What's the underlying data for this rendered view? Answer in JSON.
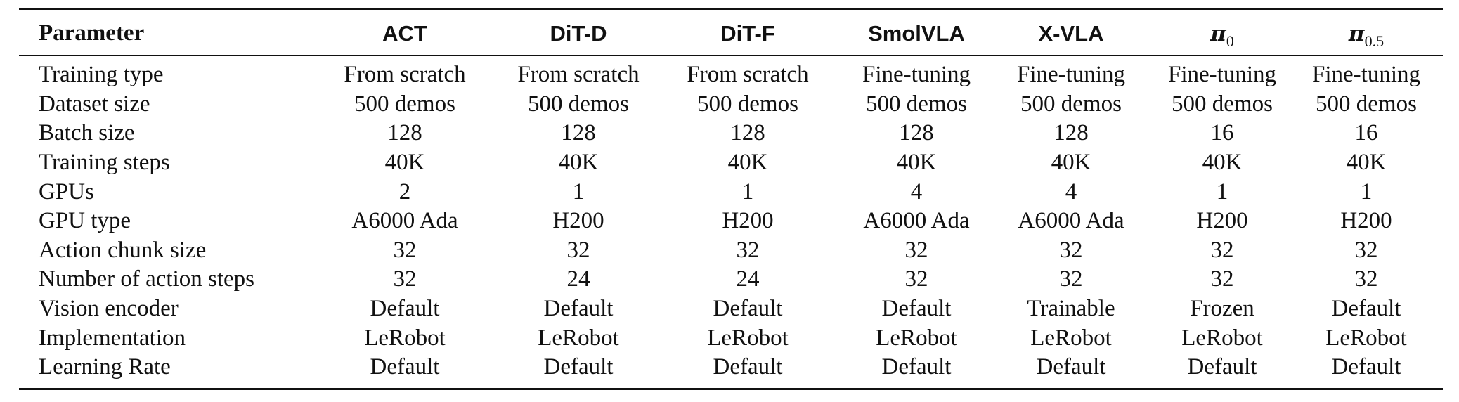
{
  "table": {
    "header": {
      "parameter": "Parameter",
      "models": [
        {
          "name": "ACT"
        },
        {
          "name": "DiT-D"
        },
        {
          "name": "DiT-F"
        },
        {
          "name": "SmolVLA"
        },
        {
          "name": "X-VLA"
        },
        {
          "name": "π",
          "sub": "0"
        },
        {
          "name": "π",
          "sub": "0.5"
        }
      ]
    },
    "rows": [
      {
        "label": "Training type",
        "values": [
          "From scratch",
          "From scratch",
          "From scratch",
          "Fine-tuning",
          "Fine-tuning",
          "Fine-tuning",
          "Fine-tuning"
        ]
      },
      {
        "label": "Dataset size",
        "values": [
          "500 demos",
          "500 demos",
          "500 demos",
          "500 demos",
          "500 demos",
          "500 demos",
          "500 demos"
        ]
      },
      {
        "label": "Batch size",
        "values": [
          "128",
          "128",
          "128",
          "128",
          "128",
          "16",
          "16"
        ]
      },
      {
        "label": "Training steps",
        "values": [
          "40K",
          "40K",
          "40K",
          "40K",
          "40K",
          "40K",
          "40K"
        ]
      },
      {
        "label": "GPUs",
        "values": [
          "2",
          "1",
          "1",
          "4",
          "4",
          "1",
          "1"
        ]
      },
      {
        "label": "GPU type",
        "values": [
          "A6000 Ada",
          "H200",
          "H200",
          "A6000 Ada",
          "A6000 Ada",
          "H200",
          "H200"
        ]
      },
      {
        "label": "Action chunk size",
        "values": [
          "32",
          "32",
          "32",
          "32",
          "32",
          "32",
          "32"
        ]
      },
      {
        "label": "Number of action steps",
        "values": [
          "32",
          "24",
          "24",
          "32",
          "32",
          "32",
          "32"
        ]
      },
      {
        "label": "Vision encoder",
        "values": [
          "Default",
          "Default",
          "Default",
          "Default",
          "Trainable",
          "Frozen",
          "Default"
        ]
      },
      {
        "label": "Implementation",
        "values": [
          "LeRobot",
          "LeRobot",
          "LeRobot",
          "LeRobot",
          "LeRobot",
          "LeRobot",
          "LeRobot"
        ]
      },
      {
        "label": "Learning Rate",
        "values": [
          "Default",
          "Default",
          "Default",
          "Default",
          "Default",
          "Default",
          "Default"
        ]
      }
    ]
  }
}
